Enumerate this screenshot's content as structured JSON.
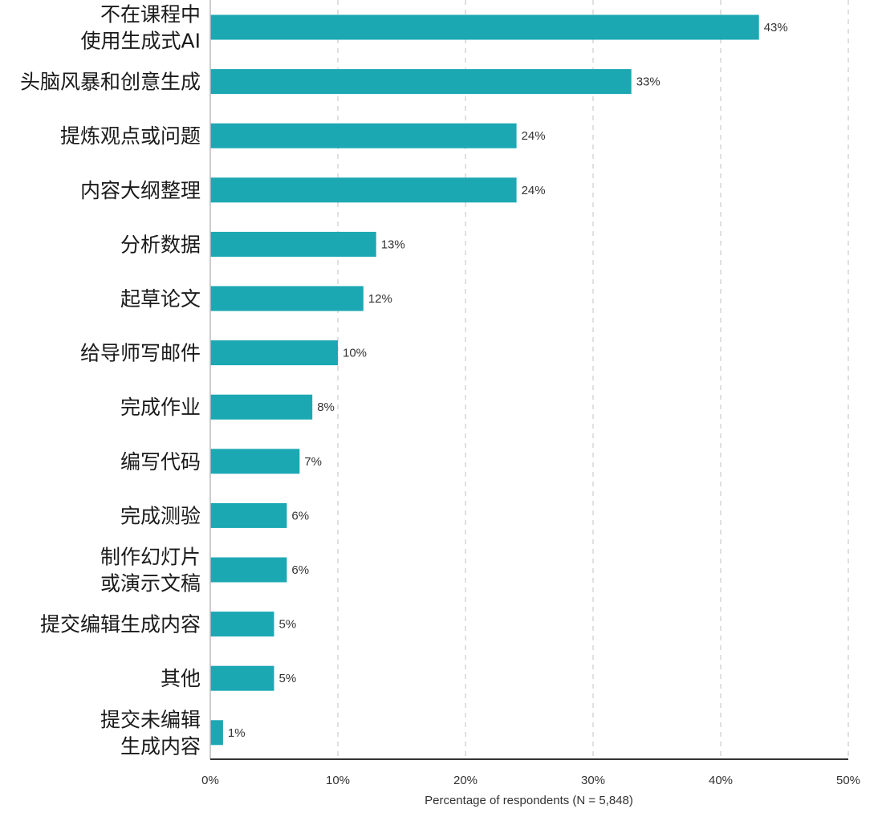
{
  "chart_data": {
    "type": "bar",
    "orientation": "horizontal",
    "categories": [
      [
        "不在课程中",
        "使用生成式AI"
      ],
      [
        "头脑风暴和创意生成"
      ],
      [
        "提炼观点或问题"
      ],
      [
        "内容大纲整理"
      ],
      [
        "分析数据"
      ],
      [
        "起草论文"
      ],
      [
        "给导师写邮件"
      ],
      [
        "完成作业"
      ],
      [
        "编写代码"
      ],
      [
        "完成测验"
      ],
      [
        "制作幻灯片",
        "或演示文稿"
      ],
      [
        "提交编辑生成内容"
      ],
      [
        "其他"
      ],
      [
        "提交未编辑",
        "生成内容"
      ]
    ],
    "values": [
      43,
      33,
      24,
      24,
      13,
      12,
      10,
      8,
      7,
      6,
      6,
      5,
      5,
      1
    ],
    "value_labels": [
      "43%",
      "33%",
      "24%",
      "24%",
      "13%",
      "12%",
      "10%",
      "8%",
      "7%",
      "6%",
      "6%",
      "5%",
      "5%",
      "1%"
    ],
    "xlim": [
      0,
      50
    ],
    "xticks": [
      0,
      10,
      20,
      30,
      40,
      50
    ],
    "xtick_labels": [
      "0%",
      "10%",
      "20%",
      "30%",
      "40%",
      "50%"
    ],
    "xlabel": "Percentage of respondents (N = 5,848)",
    "grid": "vertical dashed",
    "colors": {
      "bar": "#1ba8b3",
      "grid": "#cccccc",
      "axis": "#333333"
    }
  }
}
